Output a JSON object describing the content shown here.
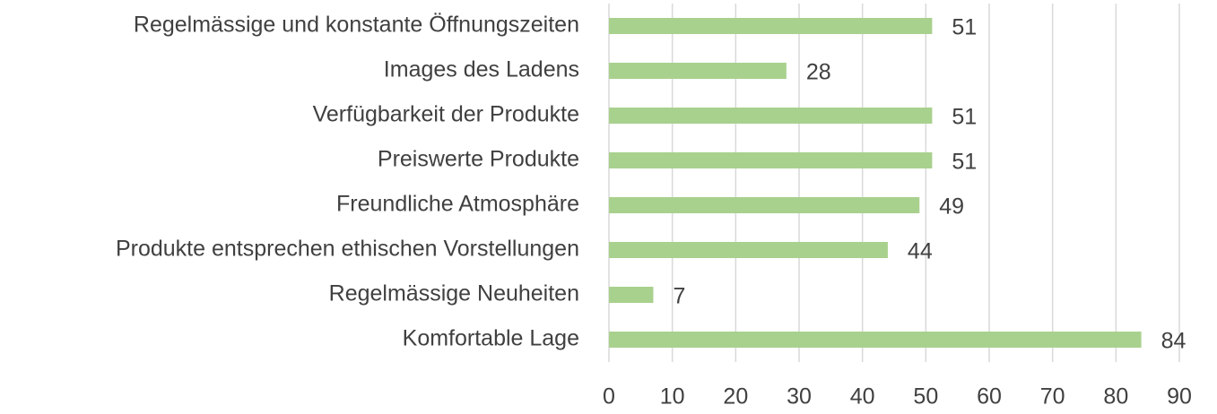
{
  "chart_data": {
    "type": "hbar",
    "categories": [
      "Regelmässige und konstante Öffnungszeiten",
      "Images des Ladens",
      "Verfügbarkeit der Produkte",
      "Preiswerte Produkte",
      "Freundliche Atmosphäre",
      "Produkte entsprechen ethischen Vorstellungen",
      "Regelmässige Neuheiten",
      "Komfortable Lage"
    ],
    "values": [
      51,
      28,
      51,
      51,
      49,
      44,
      7,
      84
    ],
    "color": "#a9d18e",
    "xlim": [
      0,
      90
    ],
    "xticks": [
      0,
      10,
      20,
      30,
      40,
      50,
      60,
      70,
      80,
      90
    ],
    "grid": true
  }
}
